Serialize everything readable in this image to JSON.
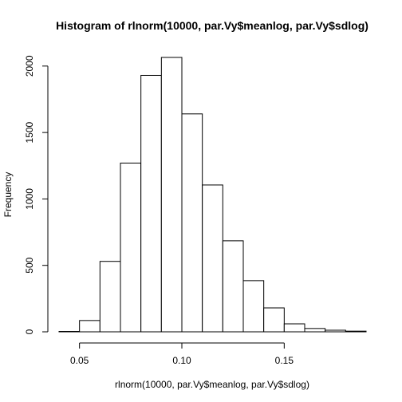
{
  "chart_data": {
    "type": "bar",
    "title": "Histogram of rlnorm(10000, par.Vy$meanlog, par.Vy$sdlog)",
    "xlabel": "rlnorm(10000, par.Vy$meanlog, par.Vy$sdlog)",
    "ylabel": "Frequency",
    "bin_edges": [
      0.04,
      0.05,
      0.06,
      0.07,
      0.08,
      0.09,
      0.1,
      0.11,
      0.12,
      0.13,
      0.14,
      0.15,
      0.16,
      0.17,
      0.18,
      0.19
    ],
    "values": [
      3,
      85,
      530,
      1270,
      1930,
      2065,
      1640,
      1105,
      685,
      385,
      180,
      60,
      25,
      12,
      5
    ],
    "xlim": [
      0.04,
      0.19
    ],
    "ylim": [
      0,
      2065
    ],
    "x_ticks": [
      0.05,
      0.1,
      0.15
    ],
    "x_tick_labels": [
      "0.05",
      "0.10",
      "0.15"
    ],
    "y_ticks": [
      0,
      500,
      1000,
      1500,
      2000
    ],
    "y_tick_labels": [
      "0",
      "500",
      "1000",
      "1500",
      "2000"
    ],
    "grid": false,
    "colors": {
      "bar_fill": "#ffffff",
      "bar_stroke": "#000000"
    }
  }
}
